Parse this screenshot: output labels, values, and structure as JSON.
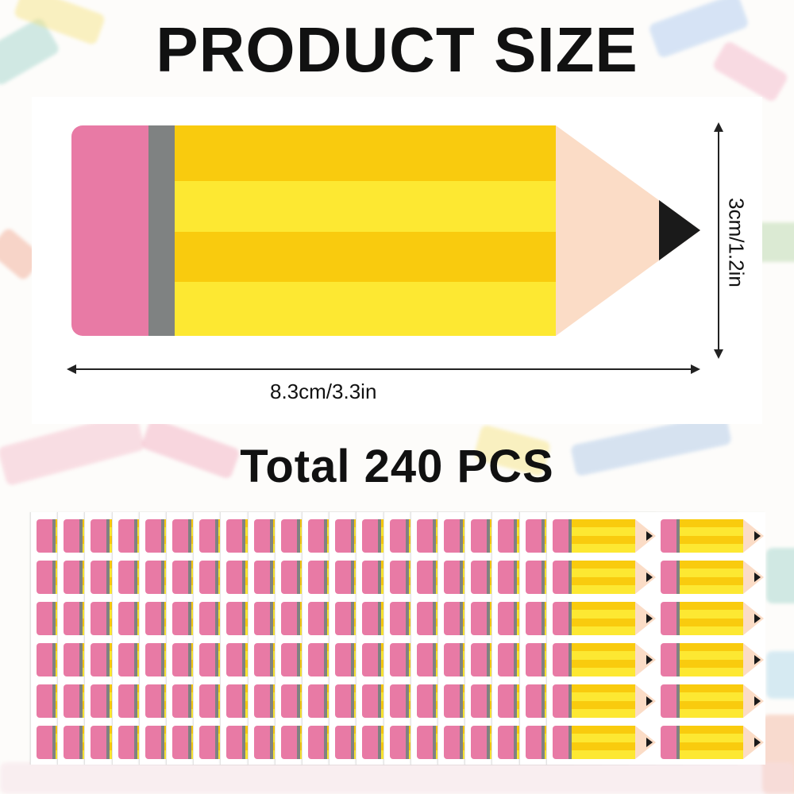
{
  "heading": "PRODUCT SIZE",
  "width_label": "8.3cm/3.3in",
  "height_label": "3cm/1.2in",
  "total_label": "Total 240 PCS",
  "sheets": {
    "count": 20,
    "columns": 2,
    "rows": 6
  },
  "colors": {
    "eraser": "#e87aa5",
    "ferrule": "#7f8282",
    "yellow_dark": "#f9cb0e",
    "yellow_light": "#fde832",
    "wood": "#fbdcc6",
    "lead": "#1a1a1a"
  }
}
